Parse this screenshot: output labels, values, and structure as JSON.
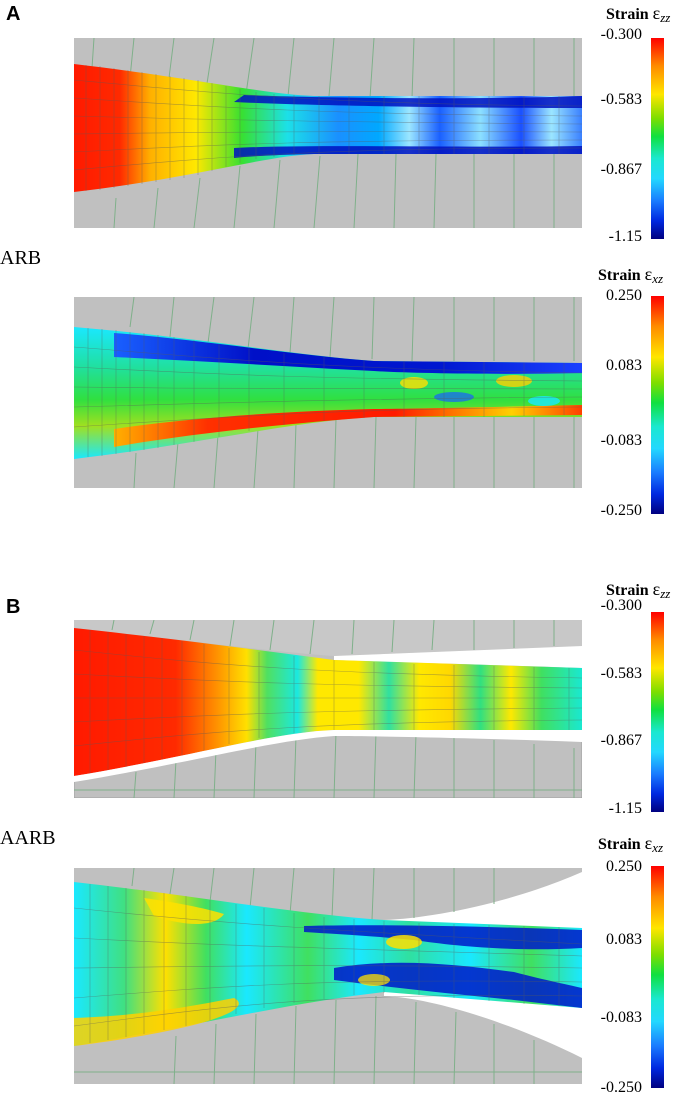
{
  "panel_a": {
    "letter": "A",
    "method_label": "ARB",
    "colorbar_zz": {
      "title": "Strain",
      "symbol": "ε",
      "subscript": "zz",
      "ticks": [
        "-0.300",
        "-0.583",
        "-0.867",
        "-1.15"
      ]
    },
    "colorbar_xz": {
      "title": "Strain",
      "symbol": "ε",
      "subscript": "xz",
      "ticks": [
        "0.250",
        "0.083",
        "-0.083",
        "-0.250"
      ]
    }
  },
  "panel_b": {
    "letter": "B",
    "method_label": "AARB",
    "colorbar_zz": {
      "title": "Strain",
      "symbol": "ε",
      "subscript": "zz",
      "ticks": [
        "-0.300",
        "-0.583",
        "-0.867",
        "-1.15"
      ]
    },
    "colorbar_xz": {
      "title": "Strain",
      "symbol": "ε",
      "subscript": "xz",
      "ticks": [
        "0.250",
        "0.083",
        "-0.083",
        "-0.250"
      ]
    }
  },
  "colors": {
    "roll_gray": "#c0c0c0",
    "mesh_green": "#7fb08a",
    "background": "#ffffff"
  }
}
